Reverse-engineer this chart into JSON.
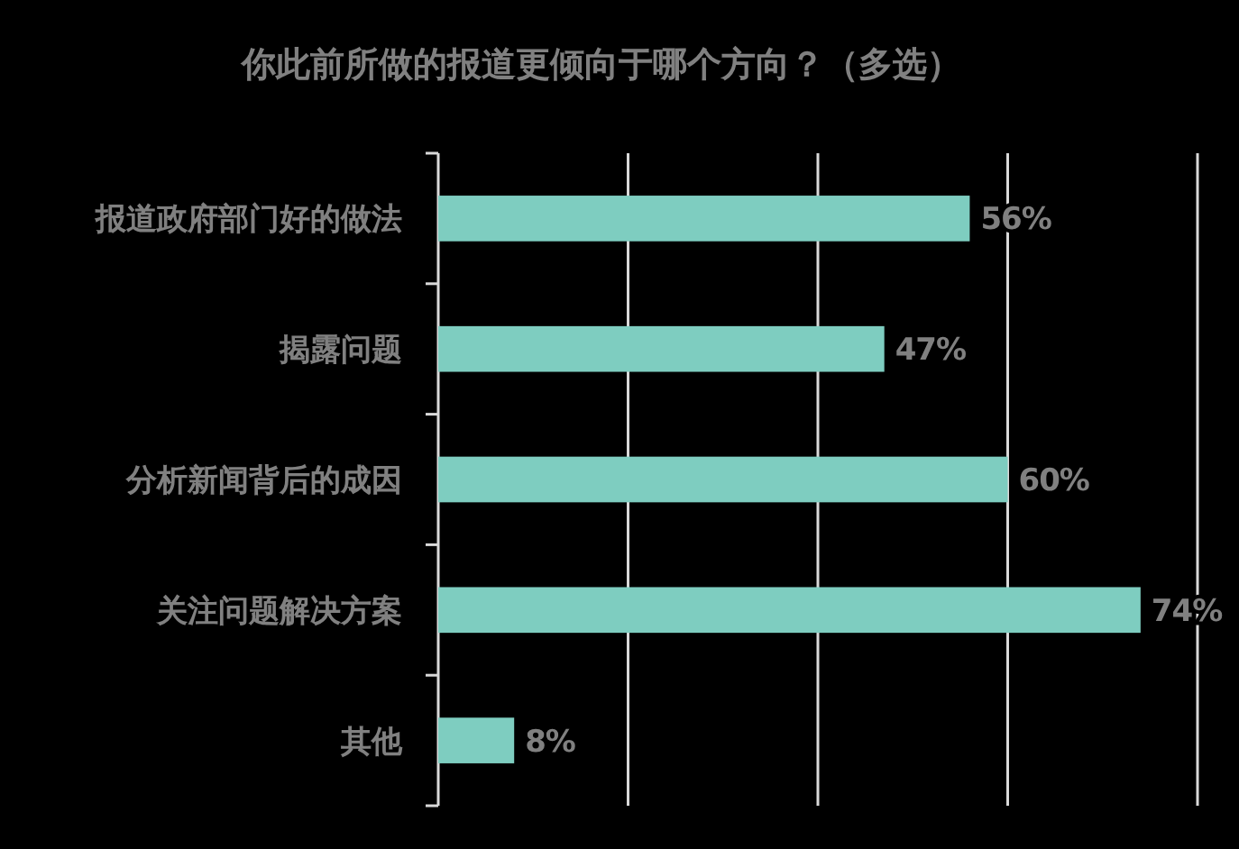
{
  "chart_data": {
    "type": "bar",
    "orientation": "horizontal",
    "title": "你此前所做的报道更倾向于哪个方向？（多选）",
    "categories": [
      "报道政府部门好的做法",
      "揭露问题",
      "分析新闻背后的成因",
      "关注问题解决方案",
      "其他"
    ],
    "values": [
      56,
      47,
      60,
      74,
      8
    ],
    "value_labels": [
      "56%",
      "47%",
      "60%",
      "74%",
      "8%"
    ],
    "color": "#7ecdc0",
    "xlim": [
      0,
      80
    ],
    "xticks": [
      {
        "value": 20,
        "label": null
      },
      {
        "value": 40,
        "label": null
      },
      {
        "value": 60,
        "label": null
      },
      {
        "value": 80,
        "label": null
      }
    ],
    "grid": "x",
    "tick_labels": "y"
  }
}
